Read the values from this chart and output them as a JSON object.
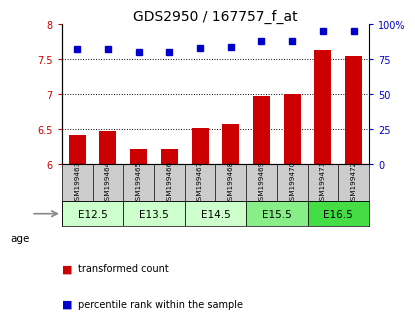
{
  "title": "GDS2950 / 167757_f_at",
  "samples": [
    "GSM199463",
    "GSM199464",
    "GSM199465",
    "GSM199466",
    "GSM199467",
    "GSM199468",
    "GSM199469",
    "GSM199470",
    "GSM199471",
    "GSM199472"
  ],
  "bar_values": [
    6.42,
    6.47,
    6.22,
    6.22,
    6.52,
    6.58,
    6.98,
    7.0,
    7.63,
    7.55
  ],
  "percentile_values": [
    82,
    82,
    80,
    80,
    83,
    84,
    88,
    88,
    95,
    95
  ],
  "ylim_left": [
    6,
    8
  ],
  "ylim_right": [
    0,
    100
  ],
  "yticks_left": [
    6,
    6.5,
    7,
    7.5,
    8
  ],
  "yticks_right": [
    0,
    25,
    50,
    75,
    100
  ],
  "bar_color": "#cc0000",
  "dot_color": "#0000cc",
  "age_groups": [
    {
      "label": "E12.5",
      "start": 0,
      "end": 2,
      "color": "#ccffcc"
    },
    {
      "label": "E13.5",
      "start": 2,
      "end": 4,
      "color": "#ccffcc"
    },
    {
      "label": "E14.5",
      "start": 4,
      "end": 6,
      "color": "#ccffcc"
    },
    {
      "label": "E15.5",
      "start": 6,
      "end": 8,
      "color": "#88ee88"
    },
    {
      "label": "E16.5",
      "start": 8,
      "end": 10,
      "color": "#44dd44"
    }
  ],
  "sample_bg_color": "#cccccc",
  "legend_items": [
    {
      "label": "transformed count",
      "color": "#cc0000"
    },
    {
      "label": "percentile rank within the sample",
      "color": "#0000cc"
    }
  ]
}
